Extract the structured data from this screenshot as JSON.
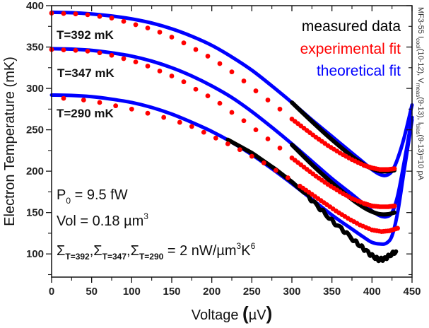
{
  "chart_data": {
    "type": "scatter",
    "title": "",
    "xlabel": "Voltage (µV)",
    "xlabel_parts": {
      "main": "Voltage ",
      "open": "(",
      "unit": "µV",
      "close": ")"
    },
    "ylabel": "Electron Temperature (mK)",
    "xlim": [
      0,
      450
    ],
    "ylim": [
      72,
      400
    ],
    "x_ticks": [
      0,
      50,
      100,
      150,
      200,
      250,
      300,
      350,
      400,
      450
    ],
    "y_ticks": [
      100,
      150,
      200,
      250,
      300,
      350,
      400
    ],
    "grid": false,
    "legend_position": "top-right",
    "legend": [
      {
        "label": "measured data",
        "color": "#000000"
      },
      {
        "label": "experimental fit",
        "color": "#ff0000"
      },
      {
        "label": "theoretical fit",
        "color": "#0000ff"
      }
    ],
    "curve_labels": [
      {
        "text": "T=392 mK",
        "x": 2,
        "y": 368
      },
      {
        "text": "T=347 mK",
        "x": 2,
        "y": 320
      },
      {
        "text": "T=290 mK",
        "x": 2,
        "y": 264
      }
    ],
    "annotations": {
      "p0": {
        "main": "P",
        "sub": "0",
        "rest": " = 9.5 fW"
      },
      "vol": {
        "main": "Vol = 0.18 µm",
        "sup": "3"
      },
      "sigma": {
        "s1": "Σ",
        "s1sub": "T=392",
        "s2": "Σ",
        "s2sub": "T=347",
        "s3": "Σ",
        "s3sub": "T=290",
        "rest": " = 2 nW/µm",
        "sup1": "3",
        "k": "K",
        "sup2": "6"
      }
    },
    "side_note": {
      "a": "MF3-55 I",
      "a_sub": "cool",
      "b": "(10-12), V",
      "b_sub": "meas",
      "c": "(9-13), I",
      "c_sub": "bias",
      "d": "(9-13)=10 pA"
    },
    "series": [
      {
        "name": "theoretical fit T=392 mK",
        "kind": "line",
        "color": "#0000ff",
        "x": [
          0,
          25,
          50,
          75,
          100,
          125,
          150,
          175,
          200,
          225,
          250,
          275,
          300,
          325,
          350,
          375,
          390,
          400,
          410,
          418,
          425,
          432,
          440,
          450
        ],
        "y": [
          392,
          391.5,
          390,
          387.5,
          384,
          379,
          372,
          363,
          352,
          338,
          322,
          303,
          283,
          262,
          242,
          222,
          210,
          202,
          196,
          195,
          200,
          215,
          240,
          280
        ]
      },
      {
        "name": "theoretical fit T=347 mK",
        "kind": "line",
        "color": "#0000ff",
        "x": [
          0,
          25,
          50,
          75,
          100,
          125,
          150,
          175,
          200,
          225,
          250,
          275,
          300,
          325,
          350,
          375,
          390,
          400,
          410,
          418,
          425,
          432,
          440,
          450
        ],
        "y": [
          348,
          347.5,
          346,
          343,
          339,
          333,
          325,
          315,
          303,
          289,
          272,
          253,
          233,
          212,
          191,
          172,
          160,
          152,
          146,
          145,
          150,
          170,
          210,
          265
        ]
      },
      {
        "name": "theoretical fit T=290 mK",
        "kind": "line",
        "color": "#0000ff",
        "x": [
          0,
          25,
          50,
          75,
          100,
          125,
          150,
          175,
          200,
          225,
          250,
          275,
          300,
          325,
          350,
          375,
          390,
          400,
          410,
          418,
          425,
          432,
          440,
          450
        ],
        "y": [
          292,
          291.5,
          290,
          287,
          283,
          277,
          269,
          259,
          248,
          235,
          220,
          203,
          185,
          166,
          147,
          130,
          120,
          114,
          112,
          113,
          122,
          150,
          200,
          262
        ]
      },
      {
        "name": "measured data T=392 mK",
        "kind": "thick",
        "color": "#000000",
        "x": [
          300,
          325,
          350,
          375,
          390,
          400,
          410,
          420,
          428
        ],
        "y": [
          283,
          260,
          238,
          218,
          208,
          203,
          200,
          200,
          201
        ]
      },
      {
        "name": "measured data T=347 mK",
        "kind": "thick",
        "color": "#000000",
        "x": [
          300,
          325,
          350,
          375,
          390,
          400,
          410,
          420,
          428
        ],
        "y": [
          232,
          208,
          186,
          166,
          156,
          151,
          148,
          148,
          150
        ]
      },
      {
        "name": "measured data T=290 mK",
        "kind": "thick",
        "color": "#000000",
        "x": [
          220,
          250,
          280,
          300,
          320,
          335,
          350,
          365,
          380,
          390,
          400,
          408,
          415,
          422,
          430
        ],
        "y": [
          238,
          222,
          202,
          187,
          170,
          155,
          140,
          128,
          114,
          106,
          98,
          93,
          94,
          98,
          103
        ]
      },
      {
        "name": "experimental fit T=392 mK",
        "kind": "dots",
        "color": "#ff0000",
        "x": [
          0,
          15,
          30,
          45,
          60,
          75,
          90,
          105,
          120,
          135,
          150,
          165,
          180,
          195,
          210,
          225,
          240,
          255,
          270,
          285,
          300,
          315,
          330,
          345,
          360,
          375,
          390,
          400,
          410,
          420,
          428
        ],
        "y": [
          391,
          390.5,
          390,
          389,
          387,
          385,
          381,
          377,
          373,
          368,
          362,
          355,
          347,
          339,
          330,
          320,
          309,
          297,
          286,
          275,
          263,
          252,
          241,
          231,
          222,
          214,
          207,
          204,
          202,
          202,
          203
        ]
      },
      {
        "name": "experimental fit T=347 mK",
        "kind": "dots",
        "color": "#ff0000",
        "x": [
          0,
          15,
          30,
          45,
          60,
          75,
          90,
          105,
          120,
          135,
          150,
          165,
          180,
          195,
          210,
          225,
          240,
          255,
          270,
          285,
          300,
          315,
          330,
          345,
          360,
          375,
          390,
          400,
          410,
          420,
          428
        ],
        "y": [
          347,
          346.5,
          346,
          345,
          343,
          340,
          336,
          332,
          327,
          321,
          315,
          308,
          299,
          291,
          282,
          271,
          261,
          250,
          239,
          228,
          216,
          205,
          194,
          184,
          175,
          167,
          161,
          158,
          157,
          157,
          158
        ]
      },
      {
        "name": "experimental fit T=290 mK",
        "kind": "dots",
        "color": "#ff0000",
        "x": [
          15,
          40,
          60,
          80,
          100,
          120,
          140,
          160,
          175,
          190,
          205,
          220,
          235,
          250,
          265,
          280,
          295,
          310,
          325,
          340,
          355,
          370,
          385,
          400,
          412,
          422,
          432
        ],
        "y": [
          288,
          286,
          283,
          279,
          275,
          270,
          265,
          259,
          254,
          247,
          240,
          233,
          226,
          218,
          210,
          201,
          192,
          182,
          172,
          162,
          152,
          143,
          135,
          129,
          127,
          128,
          131
        ]
      }
    ]
  }
}
